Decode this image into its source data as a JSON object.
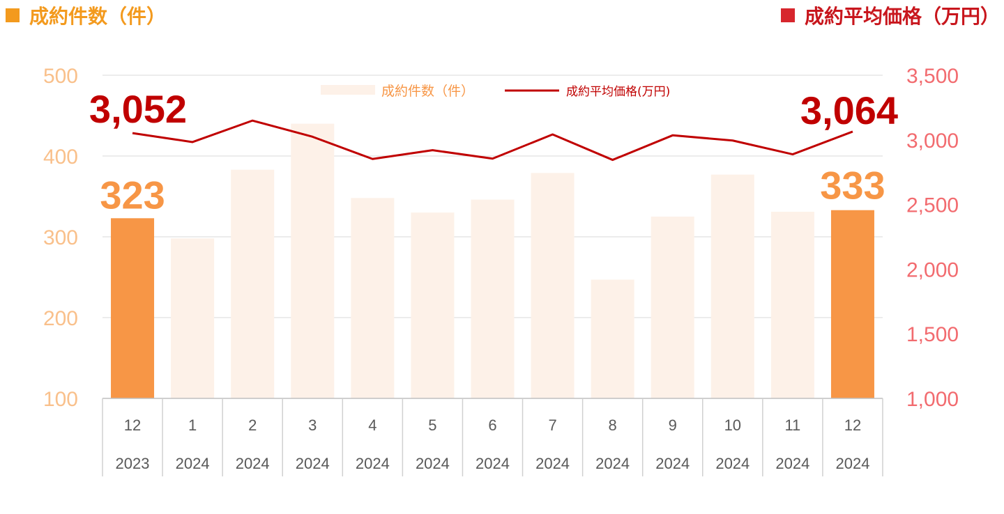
{
  "header": {
    "left_title": "成約件数（件）",
    "right_title": "成約平均価格（万円）"
  },
  "colors": {
    "bar_highlight": "#f79646",
    "bar_faded": "#fdf1e8",
    "line": "#c00000",
    "left_axis_text": "#f9c08b",
    "right_axis_text": "#f26b6f",
    "left_header": "#f39a1e",
    "right_header": "#c8161d"
  },
  "chart_data": {
    "type": "bar",
    "categories": [
      {
        "month": "12",
        "year": "2023"
      },
      {
        "month": "1",
        "year": "2024"
      },
      {
        "month": "2",
        "year": "2024"
      },
      {
        "month": "3",
        "year": "2024"
      },
      {
        "month": "4",
        "year": "2024"
      },
      {
        "month": "5",
        "year": "2024"
      },
      {
        "month": "6",
        "year": "2024"
      },
      {
        "month": "7",
        "year": "2024"
      },
      {
        "month": "8",
        "year": "2024"
      },
      {
        "month": "9",
        "year": "2024"
      },
      {
        "month": "10",
        "year": "2024"
      },
      {
        "month": "11",
        "year": "2024"
      },
      {
        "month": "12",
        "year": "2024"
      }
    ],
    "series": [
      {
        "name": "成約件数（件）",
        "type": "bar",
        "axis": "left",
        "values": [
          323,
          298,
          383,
          440,
          348,
          330,
          346,
          379,
          247,
          325,
          377,
          331,
          333
        ],
        "highlighted": [
          0,
          12
        ]
      },
      {
        "name": "成約平均価格(万円)",
        "type": "line",
        "axis": "right",
        "values": [
          3052,
          2983,
          3149,
          3024,
          2852,
          2920,
          2855,
          3042,
          2845,
          3035,
          2995,
          2888,
          3064
        ]
      }
    ],
    "left_axis": {
      "min": 100,
      "max": 500,
      "ticks": [
        "100",
        "200",
        "300",
        "400",
        "500"
      ]
    },
    "right_axis": {
      "min": 1000,
      "max": 3500,
      "ticks": [
        "1,000",
        "1,500",
        "2,000",
        "2,500",
        "3,000",
        "3,500"
      ]
    },
    "data_labels": {
      "first_bar": "323",
      "last_bar": "333",
      "first_line": "3,052",
      "last_line": "3,064"
    },
    "legend": {
      "position": "top-center",
      "bar_label": "成約件数（件）",
      "line_label": "成約平均価格(万円)"
    },
    "grid": true
  }
}
